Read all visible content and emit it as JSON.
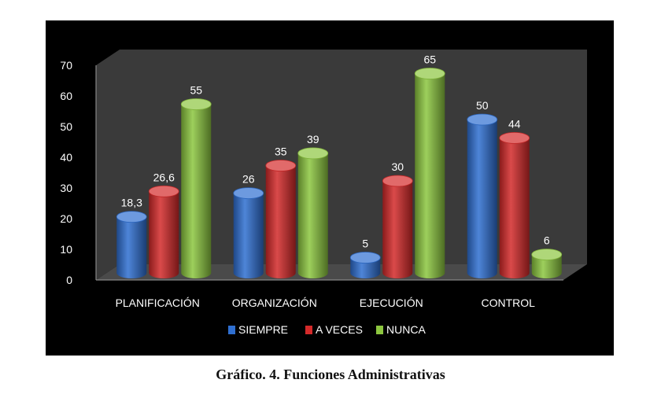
{
  "caption": "Gráfico. 4. Funciones Administrativas",
  "chart_data": {
    "type": "bar",
    "style": "3d-cylinder",
    "title": "",
    "xlabel": "",
    "ylabel": "",
    "categories": [
      "PLANIFICACIÓN",
      "ORGANIZACIÓN",
      "EJECUCIÓN",
      "CONTROL"
    ],
    "series": [
      {
        "name": "SIEMPRE",
        "values": [
          18.3,
          26,
          5,
          50
        ],
        "labels": [
          "18,3",
          "26",
          "5",
          "50"
        ],
        "color": "#2f6fd1"
      },
      {
        "name": "A VECES",
        "values": [
          26.6,
          35,
          30,
          44
        ],
        "labels": [
          "26,6",
          "35",
          "30",
          "44"
        ],
        "color": "#d42a2a"
      },
      {
        "name": "NUNCA",
        "values": [
          55,
          39,
          65,
          6
        ],
        "labels": [
          "55",
          "39",
          "65",
          "6"
        ],
        "color": "#8cc63f"
      }
    ],
    "ylim": [
      0,
      70
    ],
    "yticks": [
      0,
      10,
      20,
      30,
      40,
      50,
      60,
      70
    ],
    "grid": false,
    "legend": "bottom",
    "background": "#000000",
    "wall_color": "#3a3a3a"
  }
}
